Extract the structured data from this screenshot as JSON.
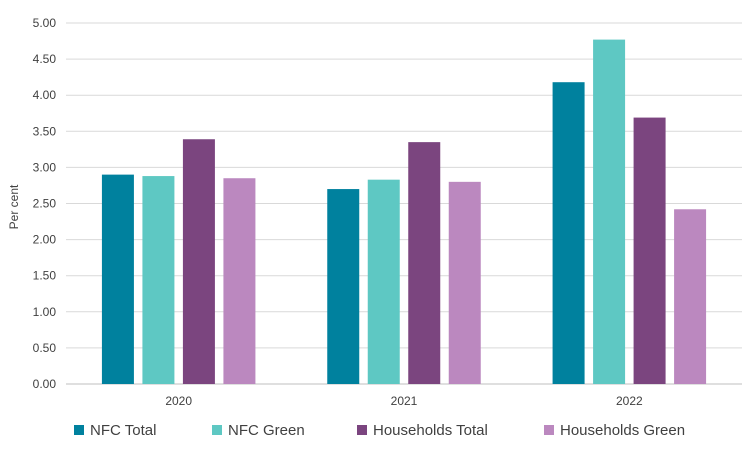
{
  "chart_data": {
    "type": "bar",
    "title": "",
    "xlabel": "",
    "ylabel": "Per cent",
    "ylim": [
      0,
      5
    ],
    "yticks": [
      "0.00",
      "0.50",
      "1.00",
      "1.50",
      "2.00",
      "2.50",
      "3.00",
      "3.50",
      "4.00",
      "4.50",
      "5.00"
    ],
    "grid": true,
    "legend_position": "bottom",
    "categories": [
      "2020",
      "2021",
      "2022"
    ],
    "series": [
      {
        "name": "NFC Total",
        "color": "#00819E",
        "values": [
          2.9,
          2.7,
          4.18
        ]
      },
      {
        "name": "NFC Green",
        "color": "#5EC8C3",
        "values": [
          2.88,
          2.83,
          4.77
        ]
      },
      {
        "name": "Households Total",
        "color": "#7B457F",
        "values": [
          3.39,
          3.35,
          3.69
        ]
      },
      {
        "name": "Households Green",
        "color": "#BB88BF",
        "values": [
          2.85,
          2.8,
          2.42
        ]
      }
    ]
  }
}
